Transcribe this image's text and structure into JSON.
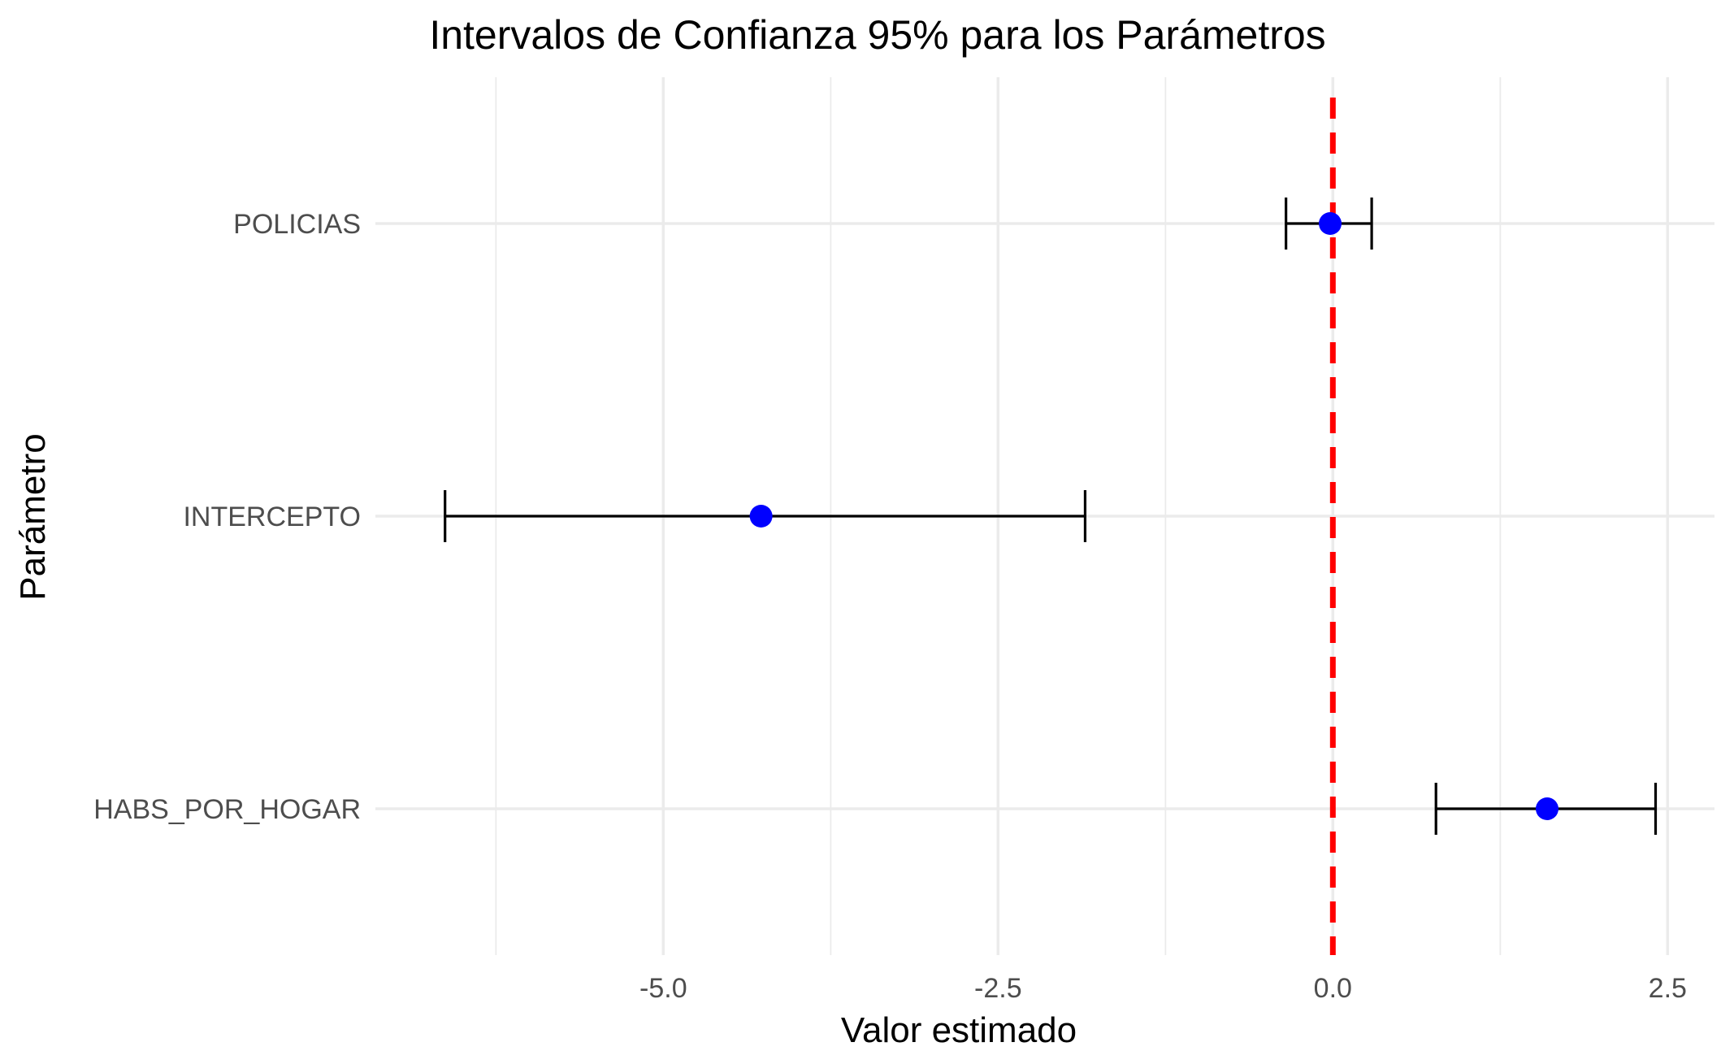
{
  "chart_data": {
    "type": "errorbar",
    "title": "Intervalos de Confianza 95% para los Parámetros",
    "xlabel": "Valor estimado",
    "ylabel": "Parámetro",
    "xlim": [
      -7.15,
      2.85
    ],
    "x_ticks": [
      -5.0,
      -2.5,
      0.0,
      2.5
    ],
    "x_tick_labels": [
      "-5.0",
      "-2.5",
      "0.0",
      "2.5"
    ],
    "x_minor_ticks": [
      -6.25,
      -3.75,
      -1.25,
      1.25
    ],
    "categories": [
      "HABS_POR_HOGAR",
      "INTERCEPTO",
      "POLICIAS"
    ],
    "series": [
      {
        "estimates": [
          1.6,
          -4.27,
          -0.02
        ],
        "lower": [
          0.77,
          -6.63,
          -0.35
        ],
        "upper": [
          2.41,
          -1.85,
          0.29
        ]
      }
    ],
    "reference_line": {
      "x": 0.0,
      "style": "dashed",
      "color": "#ff0000"
    },
    "colors": {
      "point": "#0000ff",
      "errorbar": "#000000",
      "grid": "#ebebeb"
    },
    "grid": true,
    "legend": "none"
  }
}
